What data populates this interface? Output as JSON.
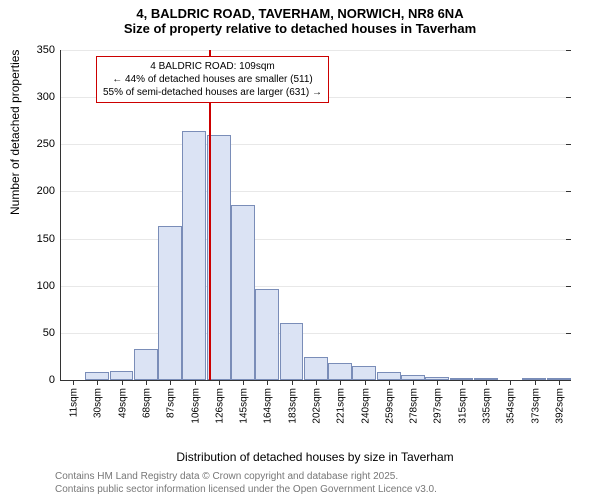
{
  "chart": {
    "type": "histogram",
    "title_main": "4, BALDRIC ROAD, TAVERHAM, NORWICH, NR8 6NA",
    "title_sub": "Size of property relative to detached houses in Taverham",
    "title_fontsize": 13,
    "ylabel": "Number of detached properties",
    "xlabel": "Distribution of detached houses by size in Taverham",
    "label_fontsize": 12,
    "ylim": [
      0,
      350
    ],
    "ytick_step": 50,
    "yticks": [
      0,
      50,
      100,
      150,
      200,
      250,
      300,
      350
    ],
    "xticks": [
      "11sqm",
      "30sqm",
      "49sqm",
      "68sqm",
      "87sqm",
      "106sqm",
      "126sqm",
      "145sqm",
      "164sqm",
      "183sqm",
      "202sqm",
      "221sqm",
      "240sqm",
      "259sqm",
      "278sqm",
      "297sqm",
      "315sqm",
      "335sqm",
      "354sqm",
      "373sqm",
      "392sqm"
    ],
    "values": [
      0,
      8,
      10,
      33,
      163,
      264,
      260,
      186,
      97,
      60,
      24,
      18,
      15,
      8,
      5,
      3,
      2,
      2,
      0,
      1,
      1
    ],
    "bar_fill": "#dbe3f4",
    "bar_stroke": "#7a8db8",
    "background_color": "#ffffff",
    "grid_color": "#e8e8e8",
    "axis_color": "#333333",
    "tick_fontsize": 11,
    "reference_line": {
      "position_index": 5.6,
      "color": "#cc0000",
      "width": 2
    },
    "annotation": {
      "line1": "4 BALDRIC ROAD: 109sqm",
      "line2": "← 44% of detached houses are smaller (511)",
      "line3": "55% of semi-detached houses are larger (631) →",
      "border_color": "#cc0000",
      "bg_color": "#ffffff",
      "fontsize": 10
    },
    "footnote_line1": "Contains HM Land Registry data © Crown copyright and database right 2025.",
    "footnote_line2": "Contains public sector information licensed under the Open Government Licence v3.0.",
    "footnote_color": "#777777"
  }
}
